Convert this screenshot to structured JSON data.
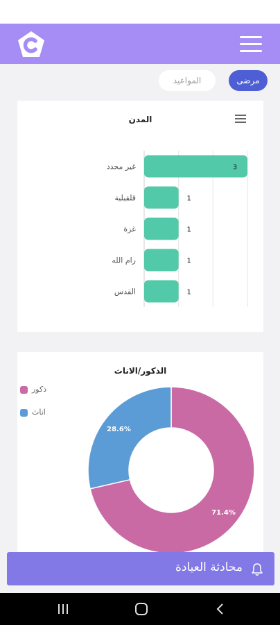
{
  "colors": {
    "accent": "#a68cf5",
    "chip_active": "#4e5fd6",
    "bar": "#52c9a8",
    "male": "#c96aa5",
    "female": "#5b9bd6",
    "bottom_bar": "#8278e6"
  },
  "header": {
    "logo_icon": "app-logo-c",
    "menu_icon": "hamburger-menu"
  },
  "tabs": {
    "patients_label": "مرضى",
    "appointments_label": "المواعيد"
  },
  "cities_chart": {
    "title": "المدن",
    "menu_icon": "chart-menu",
    "chart_data": {
      "type": "bar",
      "orientation": "horizontal",
      "categories": [
        "غير محدد",
        "قلقيلية",
        "غزة",
        "رام الله",
        "القدس"
      ],
      "values": [
        3,
        1,
        1,
        1,
        1
      ],
      "xlim": [
        0,
        3
      ],
      "grid": true
    }
  },
  "gender_chart": {
    "title": "الذكور/الاناث",
    "chart_data": {
      "type": "pie",
      "style": "donut",
      "labels": [
        "ذكور",
        "اناث"
      ],
      "values": [
        71.4,
        28.6
      ],
      "value_labels": [
        "71.4%",
        "28.6%"
      ],
      "legend": "top-left"
    }
  },
  "bottom_bar": {
    "label": "محادثة العيادة",
    "icon": "bell-icon"
  },
  "system_nav": {
    "recents_icon": "recent-apps-icon",
    "home_icon": "home-icon",
    "back_icon": "back-icon"
  }
}
